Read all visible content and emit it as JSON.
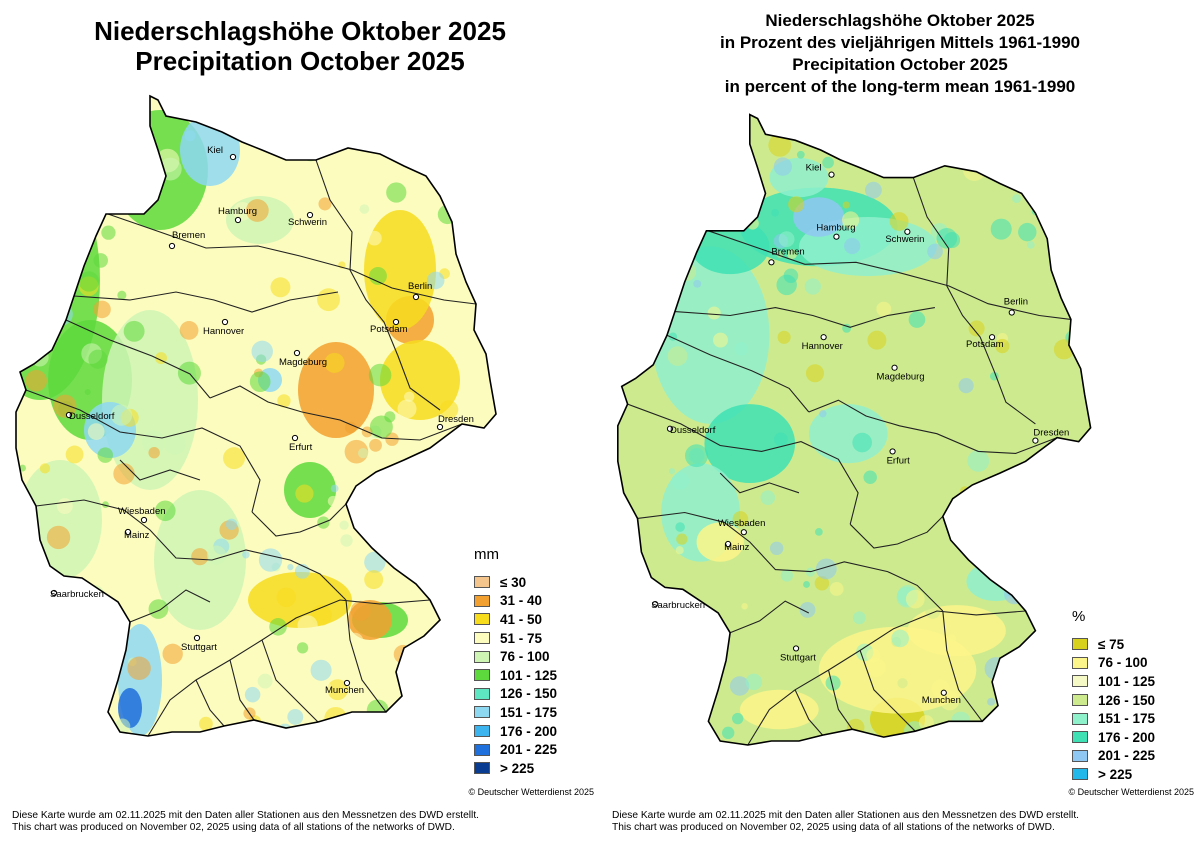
{
  "left": {
    "title_lines": [
      "Niederschlagshöhe Oktober 2025",
      "Precipitation October 2025"
    ],
    "unit": "mm",
    "legend": [
      {
        "label": "≤  30",
        "color": "#f5c58e"
      },
      {
        "label": "31 - 40",
        "color": "#f2a02f"
      },
      {
        "label": "41 - 50",
        "color": "#f7dc1e"
      },
      {
        "label": "51 - 75",
        "color": "#fcfcbe"
      },
      {
        "label": "76 - 100",
        "color": "#cff5b5"
      },
      {
        "label": "101 - 125",
        "color": "#5ed93d"
      },
      {
        "label": "126 - 150",
        "color": "#5ee6c2"
      },
      {
        "label": "151 - 175",
        "color": "#8ed8f2"
      },
      {
        "label": "176 - 200",
        "color": "#3db4ee"
      },
      {
        "label": "201 - 225",
        "color": "#1f6fdc"
      },
      {
        "label": "> 225",
        "color": "#0a3c91"
      }
    ],
    "copyright": "© Deutscher Wetterdienst 2025",
    "note_lines": [
      "Diese Karte wurde am 02.11.2025 mit den Daten aller Stationen aus den Messnetzen des DWD erstellt.",
      "This chart was produced on November 02, 2025 using data of all stations of the networks of DWD."
    ],
    "map_colors": {
      "base": "#fcfcbe",
      "wet": "#cff5b5",
      "green": "#5ed93d",
      "dry": "#f7dc1e",
      "orange": "#f2a02f",
      "blue": "#8ed8f2",
      "darkblue": "#1f6fdc"
    }
  },
  "right": {
    "title_lines": [
      "Niederschlagshöhe Oktober 2025",
      "in Prozent des vieljährigen Mittels 1961-1990",
      "Precipitation October 2025",
      "in percent of the long-term mean 1961-1990"
    ],
    "unit": "%",
    "legend": [
      {
        "label": "≤  75",
        "color": "#d8d21c"
      },
      {
        "label": "76 - 100",
        "color": "#fbf58a"
      },
      {
        "label": "101 - 125",
        "color": "#f4f9c6"
      },
      {
        "label": "126 - 150",
        "color": "#cdeb8e"
      },
      {
        "label": "151 - 175",
        "color": "#8ff0cc"
      },
      {
        "label": "176 - 200",
        "color": "#3ee0b4"
      },
      {
        "label": "201 - 225",
        "color": "#8fc8f2"
      },
      {
        "label": "> 225",
        "color": "#22b8ea"
      }
    ],
    "copyright": "© Deutscher Wetterdienst 2025",
    "note_lines": [
      "Diese Karte wurde am 02.11.2025 mit den Daten aller Stationen aus den Messnetzen des DWD erstellt.",
      "This chart was produced on November 02, 2025 using data of all stations of the networks of DWD."
    ],
    "map_colors": {
      "base": "#cdeb8e",
      "wet": "#8ff0cc",
      "green": "#3ee0b4",
      "dry": "#fbf58a",
      "orange": "#d8d21c",
      "blue": "#8fc8f2",
      "darkblue": "#22b8ea"
    }
  },
  "cities": [
    "Kiel",
    "Hamburg",
    "Schwerin",
    "Bremen",
    "Berlin",
    "Potsdam",
    "Hannover",
    "Magdeburg",
    "Dusseldorf",
    "Erfurt",
    "Dresden",
    "Wiesbaden",
    "Mainz",
    "Saarbrucken",
    "Stuttgart",
    "Munchen"
  ]
}
